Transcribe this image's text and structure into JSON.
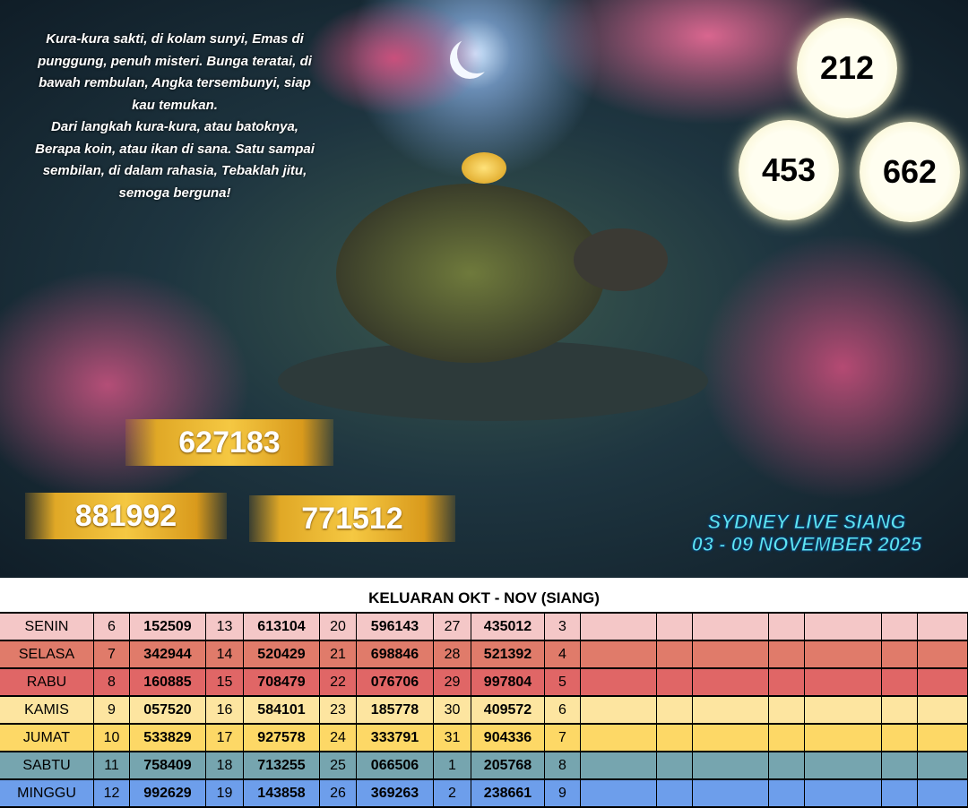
{
  "poem": [
    "Kura-kura sakti, di kolam sunyi, Emas di",
    "punggung, penuh misteri. Bunga teratai, di",
    "bawah rembulan, Angka tersembunyi, siap",
    "kau temukan.",
    "Dari langkah kura-kura, atau batoknya,",
    "Berapa koin, atau ikan di sana. Satu sampai",
    "sembilan, di dalam rahasia, Tebaklah jitu,",
    "semoga berguna!"
  ],
  "circles": [
    "212",
    "453",
    "662"
  ],
  "bars": [
    "627183",
    "881992",
    "771512"
  ],
  "banner": {
    "title": "SYDNEY LIVE SIANG",
    "dates": "03 - 09 NOVEMBER 2025"
  },
  "table": {
    "title": "KELUARAN OKT - NOV (SIANG)",
    "rows": [
      [
        "SENIN",
        "6",
        "152509",
        "13",
        "613104",
        "20",
        "596143",
        "27",
        "435012",
        "3"
      ],
      [
        "SELASA",
        "7",
        "342944",
        "14",
        "520429",
        "21",
        "698846",
        "28",
        "521392",
        "4"
      ],
      [
        "RABU",
        "8",
        "160885",
        "15",
        "708479",
        "22",
        "076706",
        "29",
        "997804",
        "5"
      ],
      [
        "KAMIS",
        "9",
        "057520",
        "16",
        "584101",
        "23",
        "185778",
        "30",
        "409572",
        "6"
      ],
      [
        "JUMAT",
        "10",
        "533829",
        "17",
        "927578",
        "24",
        "333791",
        "31",
        "904336",
        "7"
      ],
      [
        "SABTU",
        "11",
        "758409",
        "18",
        "713255",
        "25",
        "066506",
        "1",
        "205768",
        "8"
      ],
      [
        "MINGGU",
        "12",
        "992629",
        "19",
        "143858",
        "26",
        "369263",
        "2",
        "238661",
        "9"
      ]
    ]
  }
}
